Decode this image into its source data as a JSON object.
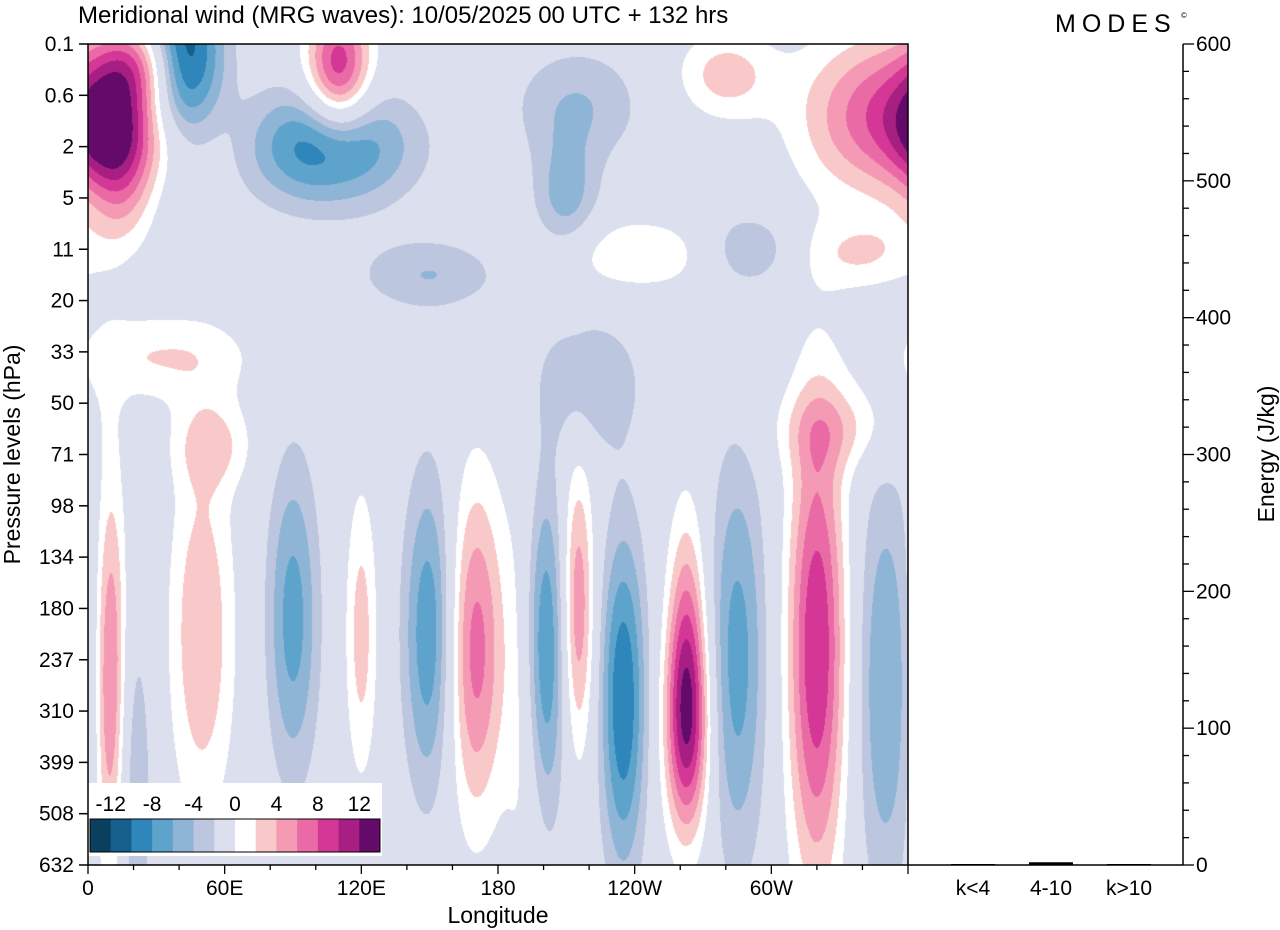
{
  "header": {
    "title": "Meridional wind (MRG waves):  10/05/2025  00 UTC  + 132 hrs",
    "brand": "MODES",
    "brand_mark": "©"
  },
  "chart_data": [
    {
      "type": "heatmap",
      "title": "Meridional wind (MRG waves):  10/05/2025  00 UTC  + 132 hrs",
      "xlabel": "Longitude",
      "ylabel": "Pressure levels (hPa)",
      "x_ticks": [
        {
          "lon": 0,
          "label": "0"
        },
        {
          "lon": 60,
          "label": "60E"
        },
        {
          "lon": 120,
          "label": "120E"
        },
        {
          "lon": 180,
          "label": "180"
        },
        {
          "lon": 240,
          "label": "120W"
        },
        {
          "lon": 300,
          "label": "60W"
        }
      ],
      "xlim": [
        0,
        360
      ],
      "y_levels": [
        "0.1",
        "0.6",
        "2",
        "5",
        "11",
        "20",
        "33",
        "50",
        "71",
        "98",
        "134",
        "180",
        "237",
        "310",
        "399",
        "508",
        "632"
      ],
      "y_scale": "level index (top = 0.1 hPa, bottom = 632 hPa)",
      "colorbar": {
        "labels": [
          "-12",
          "-8",
          "-4",
          "0",
          "4",
          "8",
          "12"
        ],
        "label_values": [
          -12,
          -8,
          -4,
          0,
          4,
          8,
          12
        ],
        "bounds": [
          -14,
          -12,
          -10,
          -8,
          -6,
          -4,
          -2,
          2,
          4,
          6,
          8,
          10,
          12,
          14
        ],
        "colors": [
          "#0b3f5e",
          "#155f8c",
          "#2e86bb",
          "#5ea3cb",
          "#8fb5d6",
          "#bcc6df",
          "#dcdfed",
          "#ffffff",
          "#f9c9c9",
          "#f49ab5",
          "#ea6aa5",
          "#d43796",
          "#a71f82",
          "#640a6b"
        ]
      },
      "features": [
        {
          "lon": 42,
          "level": 0.5,
          "value": -14,
          "sx": 12,
          "sy": 1.4
        },
        {
          "lon": 110,
          "level": 0.5,
          "value": 12,
          "sx": 10,
          "sy": 0.9
        },
        {
          "lon": 22,
          "level": 0.4,
          "value": 8,
          "sx": 14,
          "sy": 0.6
        },
        {
          "lon": 10,
          "level": 1.7,
          "value": 9,
          "sx": 12,
          "sy": 0.8
        },
        {
          "lon": 40,
          "level": 1.8,
          "value": 6,
          "sx": 16,
          "sy": 0.8
        },
        {
          "lon": 105,
          "level": 2.0,
          "value": -10,
          "sx": 25,
          "sy": 0.8
        },
        {
          "lon": 215,
          "level": 1.2,
          "value": -4,
          "sx": 20,
          "sy": 0.8
        },
        {
          "lon": 350,
          "level": 1.4,
          "value": 10,
          "sx": 25,
          "sy": 1.1
        },
        {
          "lon": 280,
          "level": 0.6,
          "value": 5,
          "sx": 15,
          "sy": 0.6
        },
        {
          "lon": 15,
          "level": 3.0,
          "value": 4,
          "sx": 10,
          "sy": 0.8
        },
        {
          "lon": 210,
          "level": 3.0,
          "value": -5,
          "sx": 10,
          "sy": 0.8
        },
        {
          "lon": 240,
          "level": 4.1,
          "value": 4,
          "sx": 25,
          "sy": 0.5
        },
        {
          "lon": 290,
          "level": 4.0,
          "value": -4,
          "sx": 14,
          "sy": 0.5
        },
        {
          "lon": 340,
          "level": 4.1,
          "value": 4,
          "sx": 18,
          "sy": 0.5
        },
        {
          "lon": 150,
          "level": 4.5,
          "value": -4,
          "sx": 22,
          "sy": 0.5
        },
        {
          "lon": 30,
          "level": 6.1,
          "value": 4,
          "sx": 30,
          "sy": 0.6
        },
        {
          "lon": 220,
          "level": 6.6,
          "value": -4,
          "sx": 16,
          "sy": 0.9
        },
        {
          "lon": 55,
          "level": 7.8,
          "value": 4,
          "sx": 12,
          "sy": 0.6
        },
        {
          "lon": 330,
          "level": 7.5,
          "value": 4,
          "sx": 20,
          "sy": 0.6
        },
        {
          "lon": 10,
          "level": 12.5,
          "value": 9,
          "sx": 5,
          "sy": 2.8
        },
        {
          "lon": 50,
          "level": 11.5,
          "value": 6,
          "sx": 10,
          "sy": 2.5
        },
        {
          "lon": 90,
          "level": 11.2,
          "value": -7,
          "sx": 8,
          "sy": 2.2
        },
        {
          "lon": 120,
          "level": 11.5,
          "value": 5,
          "sx": 5,
          "sy": 2.0
        },
        {
          "lon": 150,
          "level": 11.5,
          "value": -8,
          "sx": 8,
          "sy": 2.2
        },
        {
          "lon": 170,
          "level": 11.8,
          "value": 9,
          "sx": 9,
          "sy": 2.3
        },
        {
          "lon": 192,
          "level": 12.5,
          "value": 4,
          "sx": 6,
          "sy": 3.0
        },
        {
          "lon": 200,
          "level": 11.8,
          "value": -9,
          "sx": 7,
          "sy": 2.3
        },
        {
          "lon": 215,
          "level": 11.0,
          "value": 8,
          "sx": 5,
          "sy": 2.0
        },
        {
          "lon": 235,
          "level": 12.8,
          "value": -10,
          "sx": 7,
          "sy": 2.3
        },
        {
          "lon": 263,
          "level": 11.5,
          "value": 7,
          "sx": 6,
          "sy": 1.8
        },
        {
          "lon": 263,
          "level": 13.4,
          "value": 11,
          "sx": 7,
          "sy": 1.5
        },
        {
          "lon": 285,
          "level": 12.0,
          "value": -7,
          "sx": 9,
          "sy": 2.8
        },
        {
          "lon": 320,
          "level": 11.8,
          "value": 12,
          "sx": 9,
          "sy": 3.2
        },
        {
          "lon": 350,
          "level": 12.5,
          "value": -6,
          "sx": 9,
          "sy": 3.0
        },
        {
          "lon": 380,
          "level": 14.5,
          "value": -4,
          "sx": 6,
          "sy": 2.5
        }
      ]
    },
    {
      "type": "bar",
      "ylabel": "Energy (J/kg)",
      "categories": [
        "k<4",
        "4-10",
        "k>10"
      ],
      "values": [
        0,
        2,
        0
      ],
      "ylim": [
        0,
        600
      ],
      "y_ticks": [
        0,
        100,
        200,
        300,
        400,
        500,
        600
      ],
      "y_minor_step": 20
    }
  ]
}
